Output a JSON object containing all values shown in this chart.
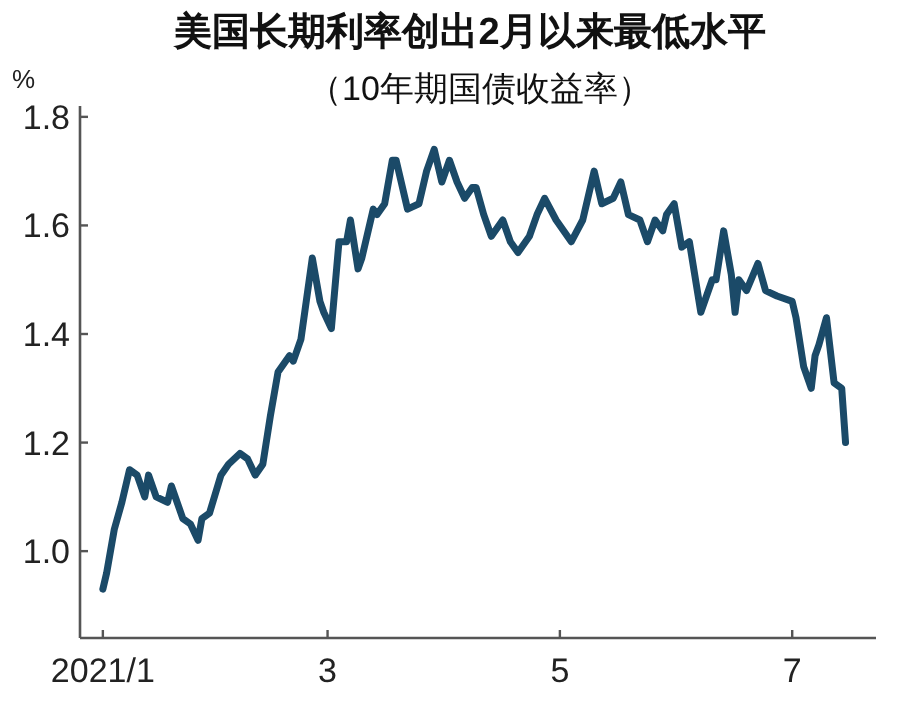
{
  "chart_data": {
    "type": "line",
    "title": "美国长期利率创出2月以来最低水平",
    "subtitle": "（10年期国债收益率）",
    "ylabel": "%",
    "x": [
      "2021-01-01",
      "2021-01-02",
      "2021-01-04",
      "2021-01-06",
      "2021-01-08",
      "2021-01-10",
      "2021-01-12",
      "2021-01-13",
      "2021-01-15",
      "2021-01-18",
      "2021-01-19",
      "2021-01-22",
      "2021-01-24",
      "2021-01-26",
      "2021-01-27",
      "2021-01-29",
      "2021-02-01",
      "2021-02-03",
      "2021-02-06",
      "2021-02-08",
      "2021-02-10",
      "2021-02-12",
      "2021-02-14",
      "2021-02-16",
      "2021-02-19",
      "2021-02-20",
      "2021-02-22",
      "2021-02-25",
      "2021-02-27",
      "2021-02-28",
      "2021-03-02",
      "2021-03-04",
      "2021-03-06",
      "2021-03-07",
      "2021-03-09",
      "2021-03-10",
      "2021-03-13",
      "2021-03-14",
      "2021-03-16",
      "2021-03-18",
      "2021-03-19",
      "2021-03-22",
      "2021-03-25",
      "2021-03-27",
      "2021-03-29",
      "2021-03-31",
      "2021-04-02",
      "2021-04-04",
      "2021-04-06",
      "2021-04-08",
      "2021-04-09",
      "2021-04-11",
      "2021-04-13",
      "2021-04-16",
      "2021-04-18",
      "2021-04-20",
      "2021-04-23",
      "2021-04-25",
      "2021-04-27",
      "2021-04-30",
      "2021-05-04",
      "2021-05-07",
      "2021-05-10",
      "2021-05-12",
      "2021-05-15",
      "2021-05-17",
      "2021-05-19",
      "2021-05-22",
      "2021-05-24",
      "2021-05-26",
      "2021-05-28",
      "2021-05-29",
      "2021-05-31",
      "2021-06-02",
      "2021-06-04",
      "2021-06-07",
      "2021-06-10",
      "2021-06-11",
      "2021-06-13",
      "2021-06-15",
      "2021-06-16",
      "2021-06-17",
      "2021-06-19",
      "2021-06-22",
      "2021-06-24",
      "2021-06-27",
      "2021-07-01",
      "2021-07-02",
      "2021-07-04",
      "2021-07-06",
      "2021-07-07",
      "2021-07-08",
      "2021-07-10",
      "2021-07-12",
      "2021-07-14",
      "2021-07-15"
    ],
    "series": [
      {
        "color": "#1b4a68",
        "values": [
          0.93,
          0.96,
          1.04,
          1.09,
          1.15,
          1.14,
          1.1,
          1.14,
          1.1,
          1.09,
          1.12,
          1.06,
          1.05,
          1.02,
          1.06,
          1.07,
          1.14,
          1.16,
          1.18,
          1.17,
          1.14,
          1.16,
          1.25,
          1.33,
          1.36,
          1.35,
          1.39,
          1.54,
          1.46,
          1.44,
          1.41,
          1.57,
          1.57,
          1.61,
          1.52,
          1.54,
          1.63,
          1.62,
          1.64,
          1.72,
          1.72,
          1.63,
          1.64,
          1.7,
          1.74,
          1.68,
          1.72,
          1.68,
          1.65,
          1.67,
          1.67,
          1.62,
          1.58,
          1.61,
          1.57,
          1.55,
          1.58,
          1.62,
          1.65,
          1.61,
          1.57,
          1.61,
          1.7,
          1.64,
          1.65,
          1.68,
          1.62,
          1.61,
          1.57,
          1.61,
          1.59,
          1.62,
          1.64,
          1.56,
          1.57,
          1.44,
          1.5,
          1.5,
          1.59,
          1.51,
          1.44,
          1.5,
          1.48,
          1.53,
          1.48,
          1.47,
          1.46,
          1.43,
          1.34,
          1.3,
          1.36,
          1.38,
          1.43,
          1.31,
          1.3,
          1.2
        ]
      }
    ],
    "xlim": [
      "2020-12-26",
      "2021-07-23"
    ],
    "ylim": [
      0.84,
      1.82
    ],
    "xticks": [
      {
        "value": "2021-01-01",
        "label": "2021/1"
      },
      {
        "value": "2021-03-01",
        "label": "3"
      },
      {
        "value": "2021-05-01",
        "label": "5"
      },
      {
        "value": "2021-07-01",
        "label": "7"
      }
    ],
    "yticks": [
      {
        "value": 1.0,
        "label": "1.0"
      },
      {
        "value": 1.2,
        "label": "1.2"
      },
      {
        "value": 1.4,
        "label": "1.4"
      },
      {
        "value": 1.6,
        "label": "1.6"
      },
      {
        "value": 1.8,
        "label": "1.8"
      }
    ]
  }
}
